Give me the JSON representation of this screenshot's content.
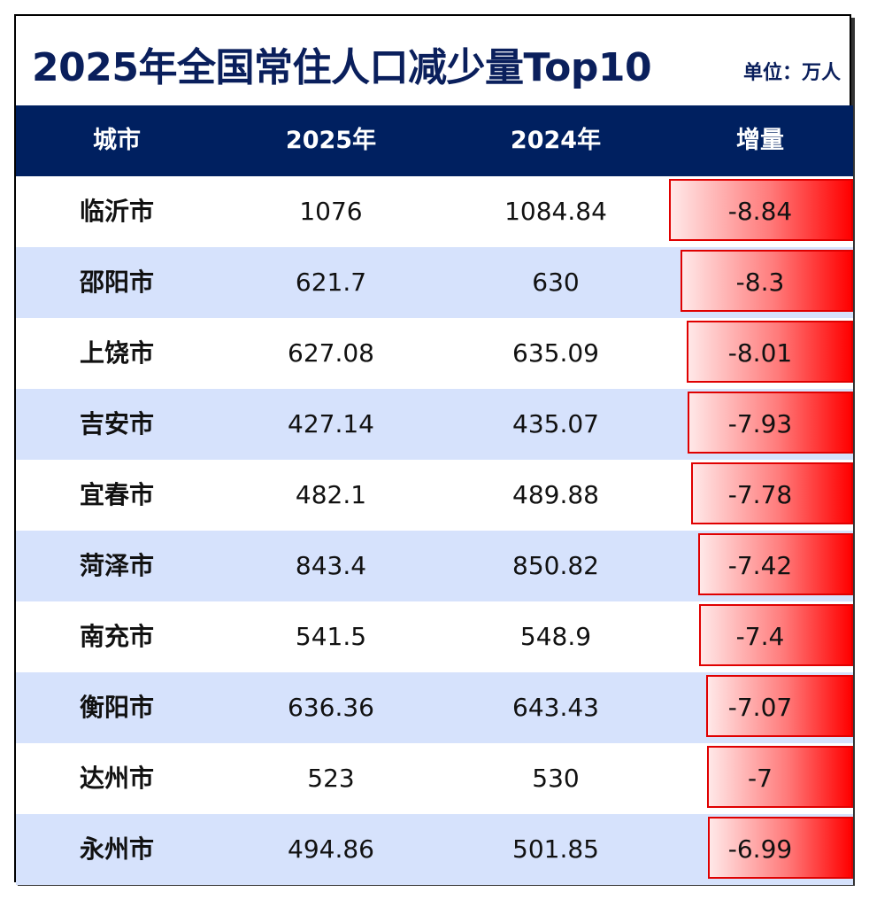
{
  "title": "2025年全国常住人口减少量Top10",
  "unit": "单位：万人",
  "colors": {
    "header_bg": "#002060",
    "title": "#0a1f5c",
    "row_alt": "#d6e2fc",
    "bar": "#ff0000"
  },
  "chart_data": {
    "type": "table",
    "title": "2025年全国常住人口减少量Top10",
    "columns": [
      "城市",
      "2025年",
      "2024年",
      "增量"
    ],
    "rows": [
      {
        "city": "临沂市",
        "y2025": "1076",
        "y2024": "1084.84",
        "change": -8.84,
        "change_label": "-8.84"
      },
      {
        "city": "邵阳市",
        "y2025": "621.7",
        "y2024": "630",
        "change": -8.3,
        "change_label": "-8.3"
      },
      {
        "city": "上饶市",
        "y2025": "627.08",
        "y2024": "635.09",
        "change": -8.01,
        "change_label": "-8.01"
      },
      {
        "city": "吉安市",
        "y2025": "427.14",
        "y2024": "435.07",
        "change": -7.93,
        "change_label": "-7.93"
      },
      {
        "city": "宜春市",
        "y2025": "482.1",
        "y2024": "489.88",
        "change": -7.78,
        "change_label": "-7.78"
      },
      {
        "city": "菏泽市",
        "y2025": "843.4",
        "y2024": "850.82",
        "change": -7.42,
        "change_label": "-7.42"
      },
      {
        "city": "南充市",
        "y2025": "541.5",
        "y2024": "548.9",
        "change": -7.4,
        "change_label": "-7.4"
      },
      {
        "city": "衡阳市",
        "y2025": "636.36",
        "y2024": "643.43",
        "change": -7.07,
        "change_label": "-7.07"
      },
      {
        "city": "达州市",
        "y2025": "523",
        "y2024": "530",
        "change": -7,
        "change_label": "-7"
      },
      {
        "city": "永州市",
        "y2025": "494.86",
        "y2024": "501.85",
        "change": -6.99,
        "change_label": "-6.99"
      }
    ]
  }
}
